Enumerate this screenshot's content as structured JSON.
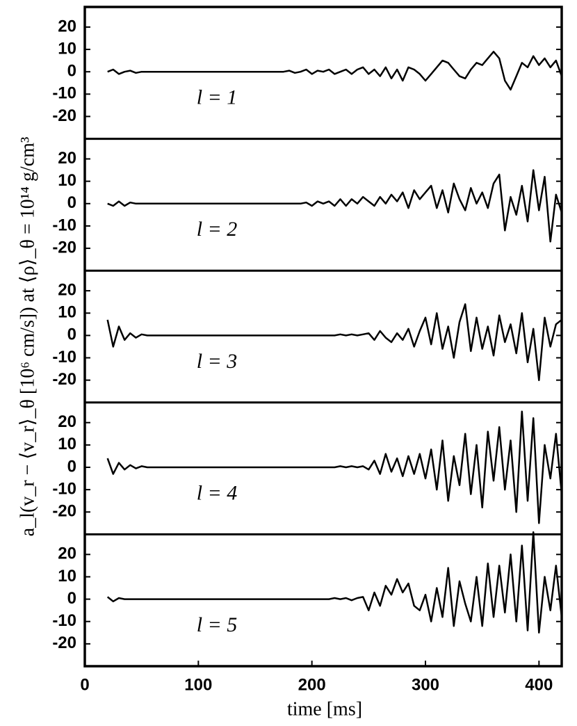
{
  "figure": {
    "xlabel": "time [ms]",
    "ylabel": "a_l(v_r − ⟨v_r⟩_θ [10⁶ cm/s]) at ⟨ρ⟩_θ = 10¹⁴ g/cm³"
  },
  "chart_data": [
    {
      "type": "line",
      "annotation": "l = 1",
      "color": "#000000",
      "xlim": [
        0,
        420
      ],
      "ylim": [
        -30,
        29
      ],
      "yticks": [
        -20,
        -10,
        0,
        10,
        20
      ],
      "x": [
        20,
        25,
        30,
        35,
        40,
        45,
        50,
        55,
        60,
        65,
        70,
        75,
        80,
        85,
        90,
        95,
        100,
        105,
        110,
        115,
        120,
        125,
        130,
        135,
        140,
        145,
        150,
        155,
        160,
        165,
        170,
        175,
        180,
        185,
        190,
        195,
        200,
        205,
        210,
        215,
        220,
        225,
        230,
        235,
        240,
        245,
        250,
        255,
        260,
        265,
        270,
        275,
        280,
        285,
        290,
        295,
        300,
        305,
        310,
        315,
        320,
        325,
        330,
        335,
        340,
        345,
        350,
        355,
        360,
        365,
        370,
        375,
        380,
        385,
        390,
        395,
        400,
        405,
        410,
        415,
        420
      ],
      "values": [
        0,
        1,
        -1,
        0,
        0.5,
        -0.5,
        0,
        0,
        0,
        0,
        0,
        0,
        0,
        0,
        0,
        0,
        0,
        0,
        0,
        0,
        0,
        0,
        0,
        0,
        0,
        0,
        0,
        0,
        0,
        0,
        0,
        0,
        0.5,
        -0.5,
        0,
        1,
        -1,
        0.5,
        0,
        1,
        -1,
        0,
        1,
        -1,
        1,
        2,
        -1,
        1,
        -2,
        2,
        -3,
        1,
        -4,
        2,
        1,
        -1,
        -4,
        -1,
        2,
        5,
        4,
        1,
        -2,
        -3,
        1,
        4,
        3,
        6,
        9,
        6,
        -4,
        -8,
        -2,
        4,
        2,
        7,
        3,
        6,
        2,
        5,
        -2
      ]
    },
    {
      "type": "line",
      "annotation": "l = 2",
      "color": "#000000",
      "xlim": [
        0,
        420
      ],
      "ylim": [
        -30,
        29
      ],
      "yticks": [
        -20,
        -10,
        0,
        10,
        20
      ],
      "x": [
        20,
        25,
        30,
        35,
        40,
        45,
        50,
        55,
        60,
        65,
        70,
        75,
        80,
        85,
        90,
        95,
        100,
        105,
        110,
        115,
        120,
        125,
        130,
        135,
        140,
        145,
        150,
        155,
        160,
        165,
        170,
        175,
        180,
        185,
        190,
        195,
        200,
        205,
        210,
        215,
        220,
        225,
        230,
        235,
        240,
        245,
        250,
        255,
        260,
        265,
        270,
        275,
        280,
        285,
        290,
        295,
        300,
        305,
        310,
        315,
        320,
        325,
        330,
        335,
        340,
        345,
        350,
        355,
        360,
        365,
        370,
        375,
        380,
        385,
        390,
        395,
        400,
        405,
        410,
        415,
        420
      ],
      "values": [
        0,
        -1,
        1,
        -1,
        0.5,
        0,
        0,
        0,
        0,
        0,
        0,
        0,
        0,
        0,
        0,
        0,
        0,
        0,
        0,
        0,
        0,
        0,
        0,
        0,
        0,
        0,
        0,
        0,
        0,
        0,
        0,
        0,
        0,
        0,
        0,
        0.5,
        -1,
        1,
        0,
        1,
        -1,
        2,
        -1,
        2,
        0,
        3,
        1,
        -1,
        3,
        0,
        4,
        1,
        5,
        -2,
        6,
        2,
        5,
        8,
        -2,
        6,
        -4,
        9,
        2,
        -3,
        7,
        0,
        5,
        -2,
        9,
        13,
        -12,
        3,
        -5,
        8,
        -8,
        15,
        -3,
        12,
        -17,
        4,
        -4
      ]
    },
    {
      "type": "line",
      "annotation": "l = 3",
      "color": "#000000",
      "xlim": [
        0,
        420
      ],
      "ylim": [
        -30,
        29
      ],
      "yticks": [
        -20,
        -10,
        0,
        10,
        20
      ],
      "x": [
        20,
        25,
        30,
        35,
        40,
        45,
        50,
        55,
        60,
        65,
        70,
        75,
        80,
        85,
        90,
        95,
        100,
        105,
        110,
        115,
        120,
        125,
        130,
        135,
        140,
        145,
        150,
        155,
        160,
        165,
        170,
        175,
        180,
        185,
        190,
        195,
        200,
        205,
        210,
        215,
        220,
        225,
        230,
        235,
        240,
        245,
        250,
        255,
        260,
        265,
        270,
        275,
        280,
        285,
        290,
        295,
        300,
        305,
        310,
        315,
        320,
        325,
        330,
        335,
        340,
        345,
        350,
        355,
        360,
        365,
        370,
        375,
        380,
        385,
        390,
        395,
        400,
        405,
        410,
        415,
        420
      ],
      "values": [
        7,
        -5,
        4,
        -2,
        1,
        -1,
        0.5,
        0,
        0,
        0,
        0,
        0,
        0,
        0,
        0,
        0,
        0,
        0,
        0,
        0,
        0,
        0,
        0,
        0,
        0,
        0,
        0,
        0,
        0,
        0,
        0,
        0,
        0,
        0,
        0,
        0,
        0,
        0,
        0,
        0,
        0,
        0.5,
        0,
        0.5,
        0,
        0.5,
        1,
        -2,
        2,
        -1,
        -3,
        1,
        -2,
        3,
        -5,
        2,
        8,
        -4,
        10,
        -6,
        4,
        -10,
        6,
        14,
        -7,
        8,
        -6,
        4,
        -9,
        9,
        -3,
        5,
        -8,
        10,
        -12,
        3,
        -20,
        8,
        -5,
        5,
        7
      ]
    },
    {
      "type": "line",
      "annotation": "l = 4",
      "color": "#000000",
      "xlim": [
        0,
        420
      ],
      "ylim": [
        -30,
        29
      ],
      "yticks": [
        -20,
        -10,
        0,
        10,
        20
      ],
      "x": [
        20,
        25,
        30,
        35,
        40,
        45,
        50,
        55,
        60,
        65,
        70,
        75,
        80,
        85,
        90,
        95,
        100,
        105,
        110,
        115,
        120,
        125,
        130,
        135,
        140,
        145,
        150,
        155,
        160,
        165,
        170,
        175,
        180,
        185,
        190,
        195,
        200,
        205,
        210,
        215,
        220,
        225,
        230,
        235,
        240,
        245,
        250,
        255,
        260,
        265,
        270,
        275,
        280,
        285,
        290,
        295,
        300,
        305,
        310,
        315,
        320,
        325,
        330,
        335,
        340,
        345,
        350,
        355,
        360,
        365,
        370,
        375,
        380,
        385,
        390,
        395,
        400,
        405,
        410,
        415,
        420
      ],
      "values": [
        4,
        -3,
        2,
        -1,
        1,
        -0.5,
        0.5,
        0,
        0,
        0,
        0,
        0,
        0,
        0,
        0,
        0,
        0,
        0,
        0,
        0,
        0,
        0,
        0,
        0,
        0,
        0,
        0,
        0,
        0,
        0,
        0,
        0,
        0,
        0,
        0,
        0,
        0,
        0,
        0,
        0,
        0,
        0.5,
        0,
        0.5,
        0,
        0.5,
        -1,
        3,
        -3,
        6,
        -2,
        4,
        -4,
        5,
        -3,
        6,
        -5,
        8,
        -10,
        12,
        -15,
        5,
        -8,
        15,
        -12,
        10,
        -18,
        16,
        -6,
        18,
        -10,
        12,
        -20,
        25,
        -15,
        22,
        -25,
        10,
        -5,
        15,
        -12
      ]
    },
    {
      "type": "line",
      "annotation": "l = 5",
      "color": "#000000",
      "xlim": [
        0,
        420
      ],
      "ylim": [
        -30,
        29
      ],
      "yticks": [
        -20,
        -10,
        0,
        10,
        20
      ],
      "xticks": [
        0,
        100,
        200,
        300,
        400
      ],
      "x": [
        20,
        25,
        30,
        35,
        40,
        45,
        50,
        55,
        60,
        65,
        70,
        75,
        80,
        85,
        90,
        95,
        100,
        105,
        110,
        115,
        120,
        125,
        130,
        135,
        140,
        145,
        150,
        155,
        160,
        165,
        170,
        175,
        180,
        185,
        190,
        195,
        200,
        205,
        210,
        215,
        220,
        225,
        230,
        235,
        240,
        245,
        250,
        255,
        260,
        265,
        270,
        275,
        280,
        285,
        290,
        295,
        300,
        305,
        310,
        315,
        320,
        325,
        330,
        335,
        340,
        345,
        350,
        355,
        360,
        365,
        370,
        375,
        380,
        385,
        390,
        395,
        400,
        405,
        410,
        415,
        420
      ],
      "values": [
        1,
        -1,
        0.5,
        0,
        0,
        0,
        0,
        0,
        0,
        0,
        0,
        0,
        0,
        0,
        0,
        0,
        0,
        0,
        0,
        0,
        0,
        0,
        0,
        0,
        0,
        0,
        0,
        0,
        0,
        0,
        0,
        0,
        0,
        0,
        0,
        0,
        0,
        0,
        0,
        0,
        0.5,
        0,
        0.5,
        -0.5,
        0.5,
        1,
        -5,
        3,
        -3,
        6,
        2,
        9,
        3,
        7,
        -3,
        -5,
        2,
        -10,
        5,
        -8,
        14,
        -12,
        8,
        -2,
        -10,
        10,
        -12,
        16,
        -8,
        15,
        -6,
        20,
        -10,
        24,
        -14,
        30,
        -15,
        10,
        -5,
        15,
        -8
      ]
    }
  ]
}
